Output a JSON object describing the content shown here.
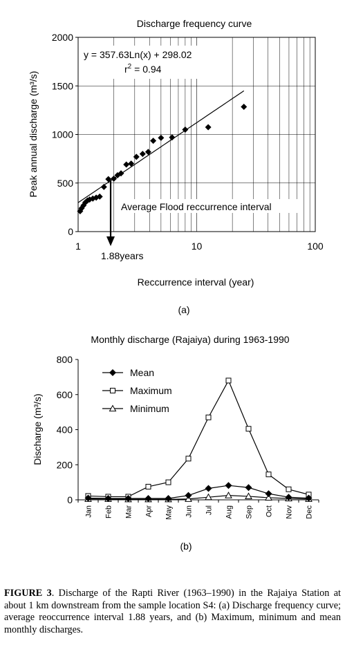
{
  "figure_caption": {
    "label": "FIGURE 3",
    "text": ". Discharge of the Rapti River (1963–1990) in the Rajaiya Station at about 1 km downstream from the sample location S4: (a) Discharge frequency curve; average reoccurrence interval 1.88 years, and (b) Maximum, minimum and mean monthly discharges."
  },
  "chart_data": [
    {
      "panel_label": "(a)",
      "type": "scatter",
      "title": "Discharge frequency curve",
      "xlabel": "Reccurrence interval (year)",
      "ylabel": "Peak annual discharge (m³/s)",
      "x_scale": "log",
      "xlim": [
        1,
        100
      ],
      "ylim": [
        0,
        2000
      ],
      "x_ticks": [
        1,
        10,
        100
      ],
      "y_ticks": [
        0,
        500,
        1000,
        1500,
        2000
      ],
      "grid": true,
      "equation": "y = 357.63Ln(x) + 298.02",
      "r2_prefix": "r",
      "r2_sup": "2",
      "r2_suffix": " = 0.94",
      "annotation": "Average Flood reccurrence interval",
      "marker_label": "1.88years",
      "marker_x": 1.88,
      "trendline": {
        "slope": 357.63,
        "intercept": 298.02,
        "x_range": [
          1,
          25
        ]
      },
      "series": [
        {
          "points": [
            [
              1.04,
              210
            ],
            [
              1.07,
              240
            ],
            [
              1.11,
              270
            ],
            [
              1.15,
              300
            ],
            [
              1.2,
              320
            ],
            [
              1.25,
              330
            ],
            [
              1.33,
              340
            ],
            [
              1.42,
              350
            ],
            [
              1.52,
              360
            ],
            [
              1.65,
              460
            ],
            [
              1.8,
              540
            ],
            [
              2.0,
              545
            ],
            [
              2.15,
              580
            ],
            [
              2.3,
              600
            ],
            [
              2.55,
              690
            ],
            [
              2.8,
              700
            ],
            [
              3.1,
              770
            ],
            [
              3.5,
              800
            ],
            [
              3.9,
              820
            ],
            [
              4.3,
              935
            ],
            [
              5.0,
              965
            ],
            [
              6.2,
              970
            ],
            [
              8.0,
              1050
            ],
            [
              12.5,
              1075
            ],
            [
              25,
              1285
            ]
          ]
        }
      ]
    },
    {
      "panel_label": "(b)",
      "type": "line",
      "title": "Monthly discharge (Rajaiya) during 1963-1990",
      "xlabel": "",
      "ylabel": "Discharge (m³/s)",
      "ylim": [
        0,
        800
      ],
      "y_ticks": [
        0,
        200,
        400,
        600,
        800
      ],
      "legend_position": "top-left",
      "categories": [
        "Jan",
        "Feb",
        "Mar",
        "Apr",
        "May",
        "Jun",
        "Jul",
        "Aug",
        "Sep",
        "Oct",
        "Nov",
        "Dec"
      ],
      "series": [
        {
          "name": "Mean",
          "marker": "diamond",
          "values": [
            10,
            8,
            8,
            8,
            8,
            25,
            65,
            82,
            70,
            35,
            15,
            10
          ]
        },
        {
          "name": "Maximum",
          "marker": "square",
          "values": [
            22,
            18,
            18,
            75,
            100,
            235,
            470,
            680,
            405,
            145,
            60,
            30
          ]
        },
        {
          "name": "Minimum",
          "marker": "triangle",
          "values": [
            5,
            5,
            3,
            3,
            3,
            5,
            15,
            25,
            20,
            12,
            8,
            5
          ]
        }
      ]
    }
  ]
}
